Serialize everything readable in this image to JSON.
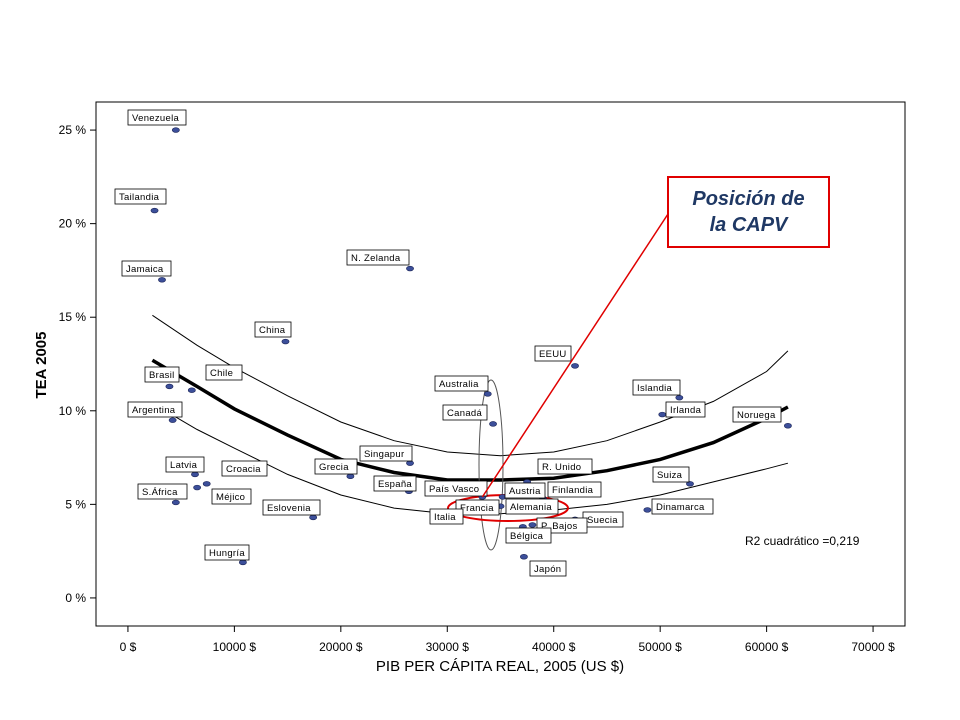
{
  "chart_data": {
    "type": "scatter",
    "xlabel": "PIB PER CÁPITA REAL, 2005 (US $)",
    "ylabel": "TEA 2005",
    "xlim": [
      -3000,
      73000
    ],
    "ylim": [
      -1.5,
      26.5
    ],
    "x_ticks": [
      {
        "value": 0,
        "label": "0 $"
      },
      {
        "value": 10000,
        "label": "10000 $"
      },
      {
        "value": 20000,
        "label": "20000 $"
      },
      {
        "value": 30000,
        "label": "30000 $"
      },
      {
        "value": 40000,
        "label": "40000 $"
      },
      {
        "value": 50000,
        "label": "50000 $"
      },
      {
        "value": 60000,
        "label": "60000 $"
      },
      {
        "value": 70000,
        "label": "70000 $"
      }
    ],
    "y_ticks": [
      {
        "value": 0,
        "label": "0 %"
      },
      {
        "value": 5,
        "label": "5 %"
      },
      {
        "value": 10,
        "label": "10 %"
      },
      {
        "value": 15,
        "label": "15 %"
      },
      {
        "value": 20,
        "label": "20 %"
      },
      {
        "value": 25,
        "label": "25 %"
      }
    ],
    "grid": false,
    "points": [
      {
        "label": "Venezuela",
        "x": 4500,
        "y": 25.0
      },
      {
        "label": "Tailandia",
        "x": 2500,
        "y": 20.7
      },
      {
        "label": "Jamaica",
        "x": 3200,
        "y": 17.0
      },
      {
        "label": "N. Zelanda",
        "x": 26500,
        "y": 17.6
      },
      {
        "label": "China",
        "x": 14800,
        "y": 13.7
      },
      {
        "label": "Brasil",
        "x": 3900,
        "y": 11.3
      },
      {
        "label": "Chile",
        "x": 6000,
        "y": 11.1
      },
      {
        "label": "Argentina",
        "x": 4200,
        "y": 9.5
      },
      {
        "label": "EEUU",
        "x": 42000,
        "y": 12.4
      },
      {
        "label": "Australia",
        "x": 33800,
        "y": 10.9
      },
      {
        "label": "Canadá",
        "x": 34300,
        "y": 9.3
      },
      {
        "label": "Islandia",
        "x": 51800,
        "y": 10.7
      },
      {
        "label": "Irlanda",
        "x": 50200,
        "y": 9.8
      },
      {
        "label": "Noruega",
        "x": 62000,
        "y": 9.2
      },
      {
        "label": "Singapur",
        "x": 26500,
        "y": 7.2
      },
      {
        "label": "Grecia",
        "x": 20900,
        "y": 6.5
      },
      {
        "label": "R. Unido",
        "x": 37500,
        "y": 6.2
      },
      {
        "label": "Suiza",
        "x": 52800,
        "y": 6.1
      },
      {
        "label": "Latvia",
        "x": 6300,
        "y": 6.6
      },
      {
        "label": "Croacia",
        "x": 7400,
        "y": 6.1
      },
      {
        "label": "España",
        "x": 26400,
        "y": 5.7
      },
      {
        "label": "País Vasco",
        "x": 33300,
        "y": 5.4
      },
      {
        "label": "Austria",
        "x": 35200,
        "y": 5.4
      },
      {
        "label": "Finlandia",
        "x": 39000,
        "y": 5.3
      },
      {
        "label": "S.África",
        "x": 4500,
        "y": 5.1
      },
      {
        "label": "Méjico",
        "x": 6500,
        "y": 5.9
      },
      {
        "label": "Francia",
        "x": 34000,
        "y": 5.0
      },
      {
        "label": "Alemania",
        "x": 35000,
        "y": 4.9
      },
      {
        "label": "Dinamarca",
        "x": 48800,
        "y": 4.7
      },
      {
        "label": "Eslovenia",
        "x": 17400,
        "y": 4.3
      },
      {
        "label": "Italia",
        "x": 29200,
        "y": 4.6
      },
      {
        "label": "Suecia",
        "x": 42000,
        "y": 4.2
      },
      {
        "label": "P. Bajos",
        "x": 38000,
        "y": 3.9
      },
      {
        "label": "Bélgica",
        "x": 37100,
        "y": 3.8
      },
      {
        "label": "Hungría",
        "x": 10800,
        "y": 1.9
      },
      {
        "label": "Japón",
        "x": 37200,
        "y": 2.2
      }
    ],
    "fit": {
      "type": "quadratic",
      "r2_label": "R2 cuadrático =0,219",
      "curve": [
        [
          2300,
          12.7
        ],
        [
          6500,
          11.3
        ],
        [
          10000,
          10.1
        ],
        [
          15000,
          8.7
        ],
        [
          20000,
          7.4
        ],
        [
          25000,
          6.7
        ],
        [
          30000,
          6.3
        ],
        [
          35000,
          6.3
        ],
        [
          40000,
          6.4
        ],
        [
          45000,
          6.8
        ],
        [
          50000,
          7.4
        ],
        [
          55000,
          8.3
        ],
        [
          60000,
          9.6
        ],
        [
          62000,
          10.2
        ]
      ],
      "upper_band": [
        [
          2300,
          15.1
        ],
        [
          6500,
          13.5
        ],
        [
          10000,
          12.3
        ],
        [
          15000,
          10.8
        ],
        [
          20000,
          9.4
        ],
        [
          25000,
          8.4
        ],
        [
          30000,
          7.8
        ],
        [
          35000,
          7.6
        ],
        [
          40000,
          7.8
        ],
        [
          45000,
          8.4
        ],
        [
          50000,
          9.4
        ],
        [
          55000,
          10.5
        ],
        [
          60000,
          12.1
        ],
        [
          62000,
          13.2
        ]
      ],
      "lower_band": [
        [
          2300,
          10.4
        ],
        [
          6500,
          9.0
        ],
        [
          10000,
          8.0
        ],
        [
          15000,
          6.6
        ],
        [
          20000,
          5.5
        ],
        [
          25000,
          4.8
        ],
        [
          30000,
          4.5
        ],
        [
          35000,
          4.5
        ],
        [
          40000,
          4.7
        ],
        [
          45000,
          5.0
        ],
        [
          50000,
          5.5
        ],
        [
          55000,
          6.2
        ],
        [
          60000,
          6.9
        ],
        [
          62000,
          7.2
        ]
      ]
    },
    "annotation": {
      "lines": [
        "Posición de",
        "la CAPV"
      ],
      "target": "País Vasco",
      "color": "#e00000",
      "text_color": "#1f3864"
    },
    "marker_color": "#3c4f9a"
  }
}
